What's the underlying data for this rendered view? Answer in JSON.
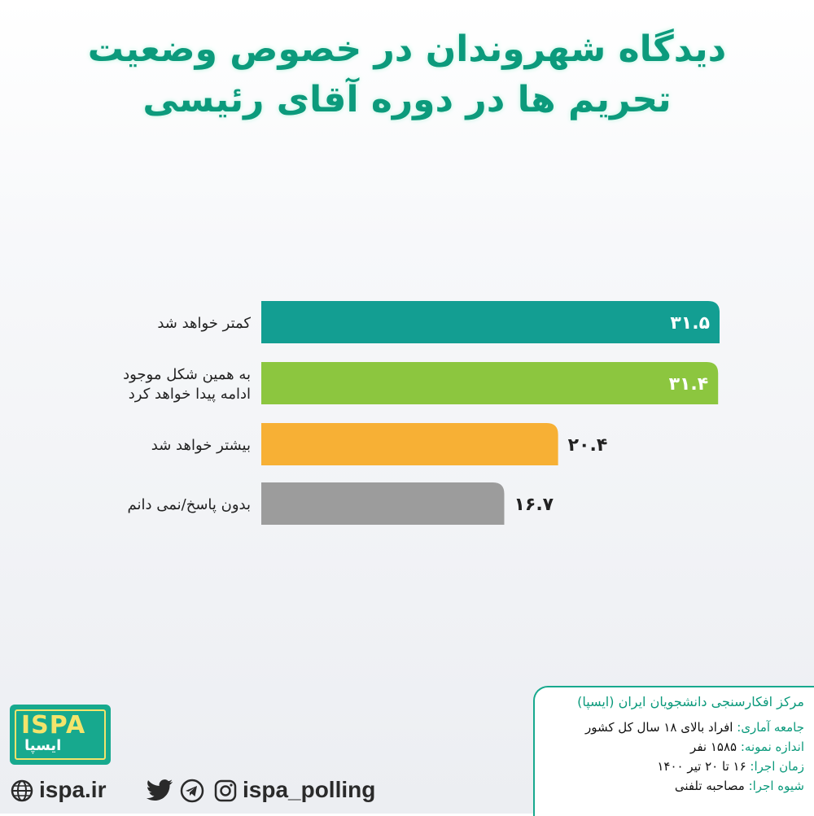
{
  "title": {
    "line1": "دیدگاه شهروندان در خصوص وضعیت",
    "line2": "تحریم ها در دوره آقای رئیسی"
  },
  "chart_data": {
    "type": "bar",
    "orientation": "horizontal",
    "categories": [
      "کمتر خواهد شد",
      "به همین شکل موجود ادامه پیدا خواهد کرد",
      "بیشتر خواهد شد",
      "بدون پاسخ/نمی دانم"
    ],
    "category_lines": [
      [
        "کمتر خواهد شد"
      ],
      [
        "به همین شکل موجود",
        "ادامه پیدا خواهد کرد"
      ],
      [
        "بیشتر خواهد شد"
      ],
      [
        "بدون پاسخ/نمی دانم"
      ]
    ],
    "values": [
      31.5,
      31.4,
      20.4,
      16.7
    ],
    "value_labels": [
      "۳۱.۵",
      "۳۱.۴",
      "۲۰.۴",
      "۱۶.۷"
    ],
    "colors": [
      "#139e92",
      "#8cc63f",
      "#f7b035",
      "#9c9c9c"
    ],
    "value_label_inside": [
      true,
      true,
      false,
      false
    ],
    "xlim": [
      0,
      31.5
    ],
    "grid": false,
    "legend": "none"
  },
  "info": {
    "org": "مرکز افکارسنجی دانشجویان ایران (ایسپا)",
    "rows": [
      {
        "label": "جامعه آماری:",
        "value": "افراد بالای ۱۸ سال کل کشور"
      },
      {
        "label": "اندازه نمونه:",
        "value": "۱۵۸۵ نفر"
      },
      {
        "label": "زمان اجرا:",
        "value": "۱۶ تا ۲۰ تیر ۱۴۰۰"
      },
      {
        "label": "شیوه اجرا:",
        "value": "مصاحبه تلفنی"
      }
    ]
  },
  "logo": {
    "brand": "ISPA",
    "fa": "ایسپا"
  },
  "footer": {
    "website": "ispa.ir",
    "handle": "ispa_polling",
    "icons": [
      "globe-icon",
      "twitter-icon",
      "telegram-icon",
      "instagram-icon"
    ]
  }
}
